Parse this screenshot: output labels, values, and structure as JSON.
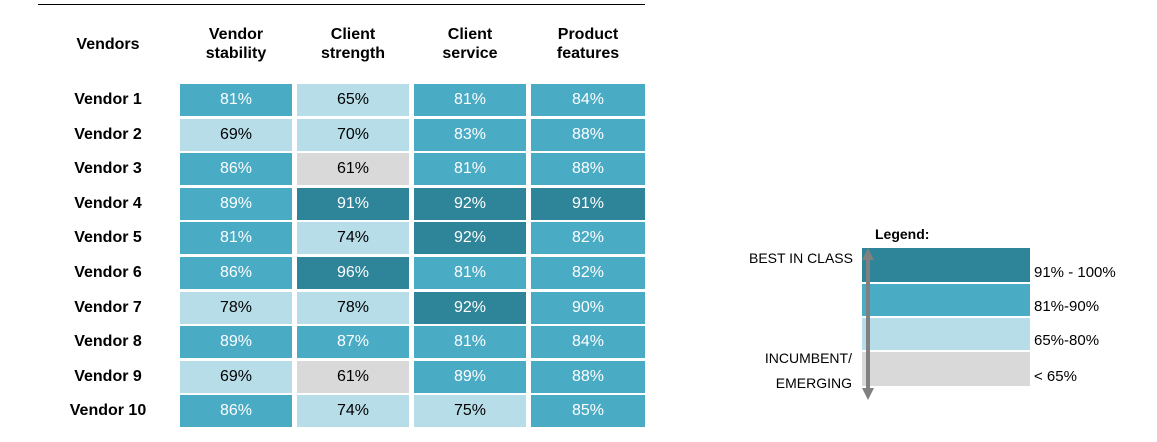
{
  "table": {
    "headers": [
      "Vendors",
      "Vendor stability",
      "Client strength",
      "Client service",
      "Product features"
    ],
    "rows": [
      {
        "name": "Vendor 1",
        "cells": [
          {
            "text": "81%",
            "color": "#4aabc5"
          },
          {
            "text": "65%",
            "color": "#b7dde8"
          },
          {
            "text": "81%",
            "color": "#4aabc5"
          },
          {
            "text": "84%",
            "color": "#4aabc5"
          }
        ]
      },
      {
        "name": "Vendor 2",
        "cells": [
          {
            "text": "69%",
            "color": "#b7dde8"
          },
          {
            "text": "70%",
            "color": "#b7dde8"
          },
          {
            "text": "83%",
            "color": "#4aabc5"
          },
          {
            "text": "88%",
            "color": "#4aabc5"
          }
        ]
      },
      {
        "name": "Vendor 3",
        "cells": [
          {
            "text": "86%",
            "color": "#4aabc5"
          },
          {
            "text": "61%",
            "color": "#d9d9d9"
          },
          {
            "text": "81%",
            "color": "#4aabc5"
          },
          {
            "text": "88%",
            "color": "#4aabc5"
          }
        ]
      },
      {
        "name": "Vendor 4",
        "cells": [
          {
            "text": "89%",
            "color": "#4aabc5"
          },
          {
            "text": "91%",
            "color": "#2e8499"
          },
          {
            "text": "92%",
            "color": "#2e8499"
          },
          {
            "text": "91%",
            "color": "#2e8499"
          }
        ]
      },
      {
        "name": "Vendor 5",
        "cells": [
          {
            "text": "81%",
            "color": "#4aabc5"
          },
          {
            "text": "74%",
            "color": "#b7dde8"
          },
          {
            "text": "92%",
            "color": "#2e8499"
          },
          {
            "text": "82%",
            "color": "#4aabc5"
          }
        ]
      },
      {
        "name": "Vendor 6",
        "cells": [
          {
            "text": "86%",
            "color": "#4aabc5"
          },
          {
            "text": "96%",
            "color": "#2e8499"
          },
          {
            "text": "81%",
            "color": "#4aabc5"
          },
          {
            "text": "82%",
            "color": "#4aabc5"
          }
        ]
      },
      {
        "name": "Vendor 7",
        "cells": [
          {
            "text": "78%",
            "color": "#b7dde8"
          },
          {
            "text": "78%",
            "color": "#b7dde8"
          },
          {
            "text": "92%",
            "color": "#2e8499"
          },
          {
            "text": "90%",
            "color": "#4aabc5"
          }
        ]
      },
      {
        "name": "Vendor 8",
        "cells": [
          {
            "text": "89%",
            "color": "#4aabc5"
          },
          {
            "text": "87%",
            "color": "#4aabc5"
          },
          {
            "text": "81%",
            "color": "#4aabc5"
          },
          {
            "text": "84%",
            "color": "#4aabc5"
          }
        ]
      },
      {
        "name": "Vendor 9",
        "cells": [
          {
            "text": "69%",
            "color": "#b7dde8"
          },
          {
            "text": "61%",
            "color": "#d9d9d9"
          },
          {
            "text": "89%",
            "color": "#4aabc5"
          },
          {
            "text": "88%",
            "color": "#4aabc5"
          }
        ]
      },
      {
        "name": "Vendor 10",
        "cells": [
          {
            "text": "86%",
            "color": "#4aabc5"
          },
          {
            "text": "74%",
            "color": "#b7dde8"
          },
          {
            "text": "75%",
            "color": "#b7dde8"
          },
          {
            "text": "85%",
            "color": "#4aabc5"
          }
        ]
      }
    ]
  },
  "legend": {
    "title": "Legend:",
    "top_label": "BEST IN CLASS",
    "bottom_label": [
      "INCUMBENT/",
      "EMERGING"
    ],
    "items": [
      {
        "label": "91% - 100%",
        "color": "#2e8499"
      },
      {
        "label": "81%-90%",
        "color": "#4aabc5"
      },
      {
        "label": "65%-80%",
        "color": "#b7dde8"
      },
      {
        "label": "< 65%",
        "color": "#d9d9d9"
      }
    ]
  }
}
